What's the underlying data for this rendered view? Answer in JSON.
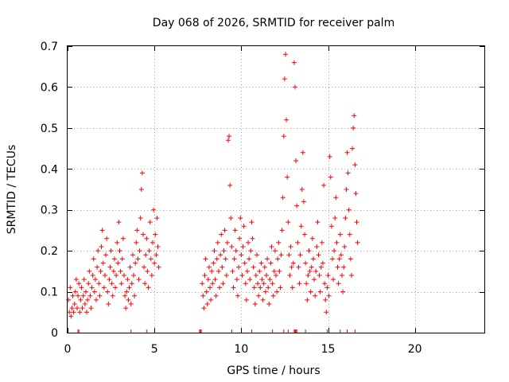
{
  "chart_data": {
    "type": "scatter",
    "title": "Day 068 of 2026, SRMTID for receiver palm",
    "xlabel": "GPS time / hours",
    "ylabel": "SRMTID / TECUs",
    "xlim": [
      0,
      24
    ],
    "ylim": [
      0,
      0.7
    ],
    "x_ticks": [
      0,
      5,
      10,
      15,
      20
    ],
    "y_ticks": [
      0,
      0.1,
      0.2,
      0.3,
      0.4,
      0.5,
      0.6,
      0.7
    ],
    "x_tick_labels": [
      "0",
      "5",
      "10",
      "15",
      "20"
    ],
    "y_tick_labels": [
      "0",
      "0.1",
      "0.2",
      "0.3",
      "0.4",
      "0.5",
      "0.6",
      "0.7"
    ],
    "grid": true,
    "marker": "+",
    "color": "#ff0000",
    "series": [
      {
        "name": "SRMTID",
        "points": [
          [
            0.05,
            0.08
          ],
          [
            0.1,
            0.05
          ],
          [
            0.15,
            0.11
          ],
          [
            0.2,
            0.04
          ],
          [
            0.25,
            0.06
          ],
          [
            0.3,
            0.09
          ],
          [
            0.35,
            0.05
          ],
          [
            0.4,
            0.07
          ],
          [
            0.45,
            0.1
          ],
          [
            0.5,
            0.13
          ],
          [
            0.55,
            0.06
          ],
          [
            0.6,
            0.09
          ],
          [
            0.65,
            0.12
          ],
          [
            0.7,
            0.05
          ],
          [
            0.75,
            0.08
          ],
          [
            0.8,
            0.11
          ],
          [
            0.85,
            0.06
          ],
          [
            0.9,
            0.09
          ],
          [
            0.95,
            0.13
          ],
          [
            1.0,
            0.07
          ],
          [
            1.05,
            0.1
          ],
          [
            1.1,
            0.05
          ],
          [
            1.15,
            0.08
          ],
          [
            1.2,
            0.12
          ],
          [
            1.25,
            0.15
          ],
          [
            1.3,
            0.09
          ],
          [
            1.35,
            0.06
          ],
          [
            1.4,
            0.11
          ],
          [
            1.45,
            0.14
          ],
          [
            1.5,
            0.18
          ],
          [
            1.55,
            0.1
          ],
          [
            1.6,
            0.13
          ],
          [
            1.65,
            0.08
          ],
          [
            1.7,
            0.16
          ],
          [
            1.75,
            0.2
          ],
          [
            1.8,
            0.12
          ],
          [
            1.85,
            0.09
          ],
          [
            1.9,
            0.15
          ],
          [
            1.95,
            0.21
          ],
          [
            2.0,
            0.25
          ],
          [
            2.05,
            0.17
          ],
          [
            2.1,
            0.11
          ],
          [
            2.15,
            0.14
          ],
          [
            2.2,
            0.19
          ],
          [
            2.25,
            0.23
          ],
          [
            2.3,
            0.1
          ],
          [
            2.35,
            0.07
          ],
          [
            2.4,
            0.13
          ],
          [
            2.45,
            0.16
          ],
          [
            2.5,
            0.2
          ],
          [
            2.55,
            0.12
          ],
          [
            2.6,
            0.09
          ],
          [
            2.65,
            0.15
          ],
          [
            2.7,
            0.18
          ],
          [
            2.75,
            0.11
          ],
          [
            2.8,
            0.14
          ],
          [
            2.85,
            0.22
          ],
          [
            2.9,
            0.17
          ],
          [
            2.95,
            0.27
          ],
          [
            3.0,
            0.2
          ],
          [
            3.05,
            0.15
          ],
          [
            3.1,
            0.12
          ],
          [
            3.15,
            0.18
          ],
          [
            3.2,
            0.23
          ],
          [
            3.25,
            0.14
          ],
          [
            3.3,
            0.09
          ],
          [
            3.35,
            0.06
          ],
          [
            3.4,
            0.1
          ],
          [
            3.45,
            0.13
          ],
          [
            3.5,
            0.08
          ],
          [
            3.55,
            0.11
          ],
          [
            3.6,
            0.16
          ],
          [
            3.65,
            0.07
          ],
          [
            3.7,
            0.12
          ],
          [
            3.75,
            0.19
          ],
          [
            3.8,
            0.14
          ],
          [
            3.85,
            0.09
          ],
          [
            3.9,
            0.17
          ],
          [
            3.95,
            0.22
          ],
          [
            4.0,
            0.25
          ],
          [
            4.05,
            0.18
          ],
          [
            4.1,
            0.13
          ],
          [
            4.15,
            0.2
          ],
          [
            4.2,
            0.28
          ],
          [
            4.25,
            0.35
          ],
          [
            4.3,
            0.39
          ],
          [
            4.35,
            0.24
          ],
          [
            4.4,
            0.16
          ],
          [
            4.45,
            0.12
          ],
          [
            4.5,
            0.19
          ],
          [
            4.55,
            0.23
          ],
          [
            4.6,
            0.15
          ],
          [
            4.65,
            0.11
          ],
          [
            4.7,
            0.2
          ],
          [
            4.75,
            0.27
          ],
          [
            4.8,
            0.18
          ],
          [
            4.85,
            0.14
          ],
          [
            4.9,
            0.22
          ],
          [
            4.95,
            0.3
          ],
          [
            5.0,
            0.17
          ],
          [
            5.05,
            0.24
          ],
          [
            5.1,
            0.19
          ],
          [
            5.15,
            0.28
          ],
          [
            5.2,
            0.21
          ],
          [
            5.25,
            0.16
          ],
          [
            7.75,
            0.12
          ],
          [
            7.8,
            0.09
          ],
          [
            7.85,
            0.06
          ],
          [
            7.9,
            0.14
          ],
          [
            7.95,
            0.18
          ],
          [
            8.0,
            0.1
          ],
          [
            8.05,
            0.07
          ],
          [
            8.1,
            0.13
          ],
          [
            8.15,
            0.16
          ],
          [
            8.2,
            0.11
          ],
          [
            8.25,
            0.08
          ],
          [
            8.3,
            0.15
          ],
          [
            8.35,
            0.12
          ],
          [
            8.4,
            0.17
          ],
          [
            8.45,
            0.2
          ],
          [
            8.5,
            0.13
          ],
          [
            8.55,
            0.09
          ],
          [
            8.6,
            0.18
          ],
          [
            8.65,
            0.22
          ],
          [
            8.7,
            0.15
          ],
          [
            8.75,
            0.11
          ],
          [
            8.8,
            0.19
          ],
          [
            8.85,
            0.24
          ],
          [
            8.9,
            0.16
          ],
          [
            8.95,
            0.12
          ],
          [
            9.0,
            0.2
          ],
          [
            9.05,
            0.25
          ],
          [
            9.1,
            0.18
          ],
          [
            9.15,
            0.14
          ],
          [
            9.2,
            0.22
          ],
          [
            9.25,
            0.47
          ],
          [
            9.3,
            0.48
          ],
          [
            9.35,
            0.36
          ],
          [
            9.4,
            0.28
          ],
          [
            9.45,
            0.21
          ],
          [
            9.5,
            0.15
          ],
          [
            9.55,
            0.11
          ],
          [
            9.6,
            0.18
          ],
          [
            9.65,
            0.25
          ],
          [
            9.7,
            0.2
          ],
          [
            9.75,
            0.13
          ],
          [
            9.8,
            0.09
          ],
          [
            9.85,
            0.16
          ],
          [
            9.9,
            0.23
          ],
          [
            9.95,
            0.28
          ],
          [
            10.0,
            0.19
          ],
          [
            10.05,
            0.14
          ],
          [
            10.1,
            0.21
          ],
          [
            10.15,
            0.26
          ],
          [
            10.2,
            0.17
          ],
          [
            10.25,
            0.12
          ],
          [
            10.3,
            0.08
          ],
          [
            10.35,
            0.15
          ],
          [
            10.4,
            0.22
          ],
          [
            10.45,
            0.18
          ],
          [
            10.5,
            0.13
          ],
          [
            10.55,
            0.2
          ],
          [
            10.6,
            0.27
          ],
          [
            10.65,
            0.23
          ],
          [
            10.7,
            0.16
          ],
          [
            10.75,
            0.11
          ],
          [
            10.8,
            0.07
          ],
          [
            10.85,
            0.14
          ],
          [
            10.9,
            0.19
          ],
          [
            10.95,
            0.12
          ],
          [
            11.0,
            0.09
          ],
          [
            11.05,
            0.15
          ],
          [
            11.1,
            0.11
          ],
          [
            11.15,
            0.17
          ],
          [
            11.2,
            0.13
          ],
          [
            11.25,
            0.08
          ],
          [
            11.3,
            0.12
          ],
          [
            11.35,
            0.16
          ],
          [
            11.4,
            0.1
          ],
          [
            11.45,
            0.14
          ],
          [
            11.5,
            0.18
          ],
          [
            11.55,
            0.11
          ],
          [
            11.6,
            0.07
          ],
          [
            11.65,
            0.13
          ],
          [
            11.7,
            0.17
          ],
          [
            11.75,
            0.21
          ],
          [
            11.8,
            0.12
          ],
          [
            11.85,
            0.09
          ],
          [
            11.9,
            0.15
          ],
          [
            11.95,
            0.2
          ],
          [
            12.0,
            0.14
          ],
          [
            12.05,
            0.1
          ],
          [
            12.1,
            0.18
          ],
          [
            12.15,
            0.22
          ],
          [
            12.2,
            0.15
          ],
          [
            12.25,
            0.11
          ],
          [
            12.3,
            0.19
          ],
          [
            12.35,
            0.25
          ],
          [
            12.4,
            0.33
          ],
          [
            12.45,
            0.48
          ],
          [
            12.5,
            0.62
          ],
          [
            12.55,
            0.68
          ],
          [
            12.6,
            0.52
          ],
          [
            12.65,
            0.38
          ],
          [
            12.7,
            0.27
          ],
          [
            12.75,
            0.19
          ],
          [
            12.8,
            0.14
          ],
          [
            12.85,
            0.21
          ],
          [
            12.9,
            0.16
          ],
          [
            12.95,
            0.11
          ],
          [
            13.0,
            0.17
          ],
          [
            13.05,
            0.66
          ],
          [
            13.1,
            0.6
          ],
          [
            13.15,
            0.42
          ],
          [
            13.2,
            0.31
          ],
          [
            13.25,
            0.22
          ],
          [
            13.3,
            0.16
          ],
          [
            13.35,
            0.12
          ],
          [
            13.4,
            0.19
          ],
          [
            13.45,
            0.26
          ],
          [
            13.5,
            0.35
          ],
          [
            13.55,
            0.44
          ],
          [
            13.6,
            0.32
          ],
          [
            13.65,
            0.24
          ],
          [
            13.7,
            0.17
          ],
          [
            13.75,
            0.12
          ],
          [
            13.8,
            0.08
          ],
          [
            13.85,
            0.14
          ],
          [
            13.9,
            0.2
          ],
          [
            13.95,
            0.15
          ],
          [
            14.0,
            0.1
          ],
          [
            14.05,
            0.16
          ],
          [
            14.1,
            0.23
          ],
          [
            14.15,
            0.18
          ],
          [
            14.2,
            0.13
          ],
          [
            14.25,
            0.09
          ],
          [
            14.3,
            0.15
          ],
          [
            14.35,
            0.21
          ],
          [
            14.4,
            0.27
          ],
          [
            14.45,
            0.19
          ],
          [
            14.5,
            0.14
          ],
          [
            14.55,
            0.1
          ],
          [
            14.6,
            0.16
          ],
          [
            14.65,
            0.22
          ],
          [
            14.7,
            0.17
          ],
          [
            14.75,
            0.36
          ],
          [
            14.8,
            0.12
          ],
          [
            14.85,
            0.08
          ],
          [
            14.9,
            0.05
          ],
          [
            14.95,
            0.11
          ],
          [
            15.0,
            0.14
          ],
          [
            15.05,
            0.09
          ],
          [
            15.1,
            0.43
          ],
          [
            15.15,
            0.38
          ],
          [
            15.2,
            0.26
          ],
          [
            15.25,
            0.18
          ],
          [
            15.3,
            0.13
          ],
          [
            15.35,
            0.2
          ],
          [
            15.4,
            0.28
          ],
          [
            15.45,
            0.33
          ],
          [
            15.5,
            0.22
          ],
          [
            15.55,
            0.16
          ],
          [
            15.6,
            0.12
          ],
          [
            15.65,
            0.18
          ],
          [
            15.7,
            0.24
          ],
          [
            15.75,
            0.19
          ],
          [
            15.8,
            0.14
          ],
          [
            15.85,
            0.1
          ],
          [
            15.9,
            0.16
          ],
          [
            15.95,
            0.21
          ],
          [
            16.0,
            0.28
          ],
          [
            16.05,
            0.35
          ],
          [
            16.1,
            0.44
          ],
          [
            16.15,
            0.39
          ],
          [
            16.2,
            0.3
          ],
          [
            16.25,
            0.24
          ],
          [
            16.3,
            0.18
          ],
          [
            16.35,
            0.14
          ],
          [
            16.4,
            0.45
          ],
          [
            16.45,
            0.5
          ],
          [
            16.5,
            0.53
          ],
          [
            16.55,
            0.41
          ],
          [
            16.6,
            0.34
          ],
          [
            16.65,
            0.27
          ],
          [
            16.7,
            0.22
          ]
        ]
      }
    ],
    "x_baseline_points": [
      0.6,
      0.65,
      3.65,
      4.55,
      7.6,
      7.65,
      7.7,
      9.45,
      10.6,
      11.8,
      12.45,
      12.7,
      13.05,
      13.1,
      13.15,
      13.2,
      13.7,
      14.95,
      15.7,
      16.1,
      16.55
    ]
  }
}
